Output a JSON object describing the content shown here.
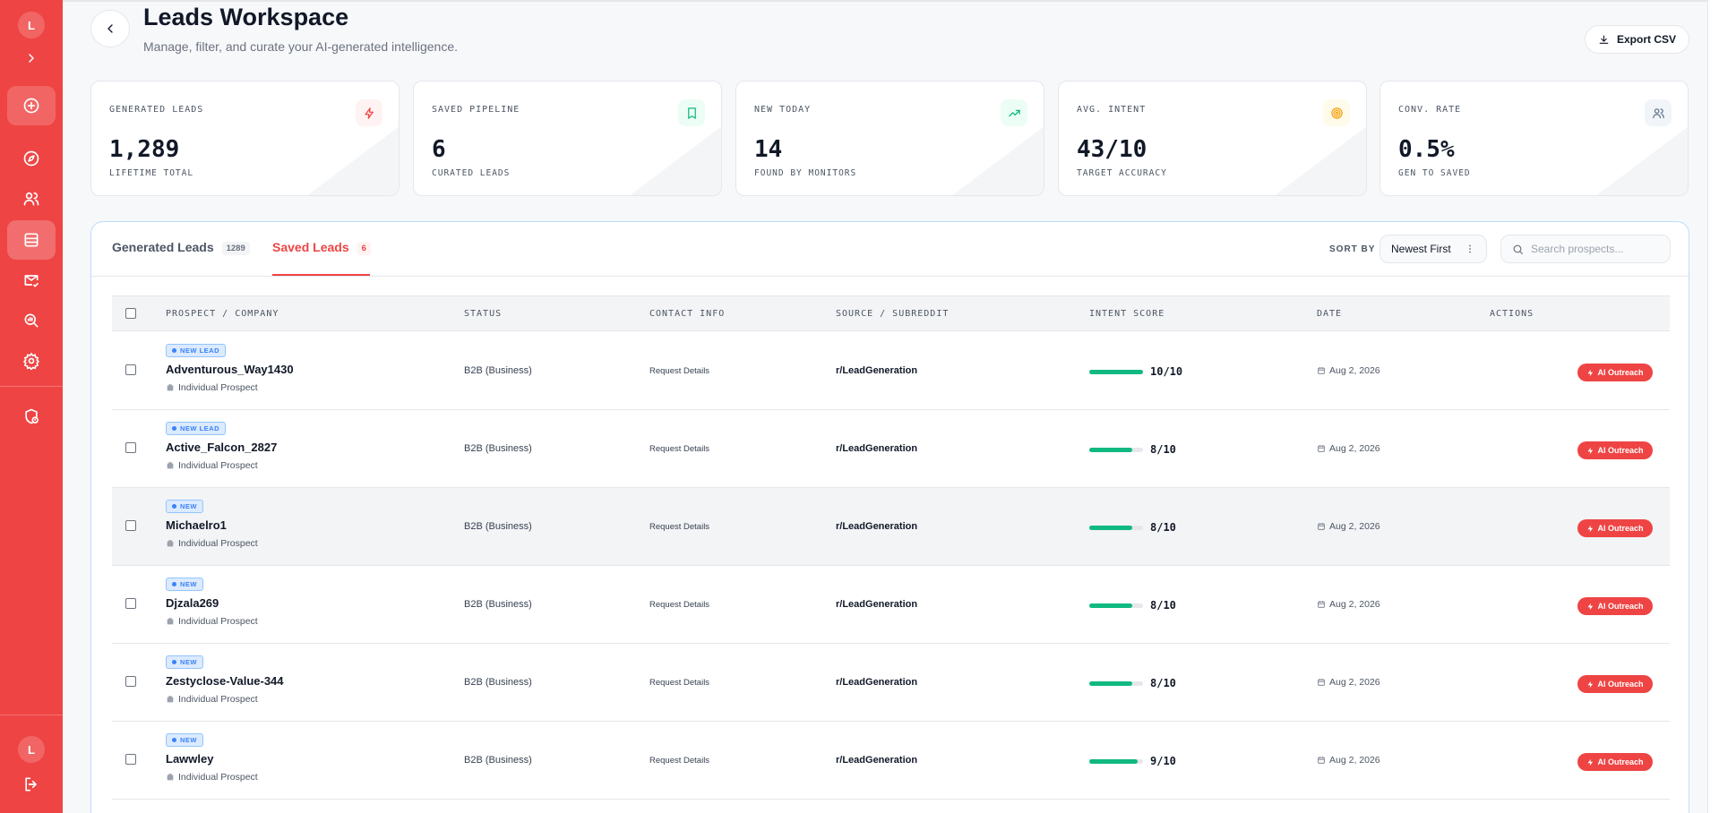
{
  "sidebar": {
    "avatar_top": "L",
    "avatar_bottom": "L",
    "items": [
      {
        "name": "add",
        "icon": "plus-circle-icon"
      },
      {
        "name": "discover",
        "icon": "compass-icon"
      },
      {
        "name": "users",
        "icon": "users-icon"
      },
      {
        "name": "leads",
        "icon": "table-icon",
        "active": true
      },
      {
        "name": "mail",
        "icon": "mail-check-icon"
      },
      {
        "name": "search",
        "icon": "search-analytics-icon"
      },
      {
        "name": "settings",
        "icon": "gear-icon"
      },
      {
        "name": "security",
        "icon": "shield-alert-icon"
      }
    ]
  },
  "header": {
    "title": "Leads Workspace",
    "subtitle": "Manage, filter, and curate your AI-generated intelligence.",
    "export_label": "Export CSV"
  },
  "stats": [
    {
      "label": "GENERATED LEADS",
      "value": "1,289",
      "caption": "LIFETIME TOTAL",
      "icon": "bolt-icon",
      "color": "#ef4444",
      "bg": "#fef2f2"
    },
    {
      "label": "SAVED PIPELINE",
      "value": "6",
      "caption": "CURATED LEADS",
      "icon": "bookmark-icon",
      "color": "#10b981",
      "bg": "#ecfdf5"
    },
    {
      "label": "NEW TODAY",
      "value": "14",
      "caption": "FOUND BY MONITORS",
      "icon": "trending-up-icon",
      "color": "#10b981",
      "bg": "#ecfdf5"
    },
    {
      "label": "AVG. INTENT",
      "value": "43/10",
      "caption": "TARGET ACCURACY",
      "icon": "target-icon",
      "color": "#f59e0b",
      "bg": "#fffbeb"
    },
    {
      "label": "CONV. RATE",
      "value": "0.5%",
      "caption": "GEN TO SAVED",
      "icon": "users-icon",
      "color": "#64748b",
      "bg": "#f1f5f9"
    }
  ],
  "tabs": {
    "generated_label": "Generated Leads",
    "generated_count": "1289",
    "saved_label": "Saved Leads",
    "saved_count": "6",
    "active": "saved"
  },
  "toolbar": {
    "sort_label": "SORT BY",
    "sort_value": "Newest First",
    "search_placeholder": "Search prospects..."
  },
  "table": {
    "columns": [
      "PROSPECT / COMPANY",
      "STATUS",
      "CONTACT INFO",
      "SOURCE / SUBREDDIT",
      "INTENT SCORE",
      "DATE",
      "ACTIONS"
    ],
    "rows": [
      {
        "badge": "NEW LEAD",
        "name": "Adventurous_Way1430",
        "type": "Individual Prospect",
        "status": "B2B (Business)",
        "contact": "Request Details",
        "source": "r/LeadGeneration",
        "score": "10/10",
        "score_value": 10,
        "date": "Aug 2, 2026",
        "action": "AI Outreach"
      },
      {
        "badge": "NEW LEAD",
        "name": "Active_Falcon_2827",
        "type": "Individual Prospect",
        "status": "B2B (Business)",
        "contact": "Request Details",
        "source": "r/LeadGeneration",
        "score": "8/10",
        "score_value": 8,
        "date": "Aug 2, 2026",
        "action": "AI Outreach"
      },
      {
        "badge": "NEW",
        "name": "Michaelro1",
        "type": "Individual Prospect",
        "status": "B2B (Business)",
        "contact": "Request Details",
        "source": "r/LeadGeneration",
        "score": "8/10",
        "score_value": 8,
        "date": "Aug 2, 2026",
        "action": "AI Outreach",
        "highlighted": true
      },
      {
        "badge": "NEW",
        "name": "Djzala269",
        "type": "Individual Prospect",
        "status": "B2B (Business)",
        "contact": "Request Details",
        "source": "r/LeadGeneration",
        "score": "8/10",
        "score_value": 8,
        "date": "Aug 2, 2026",
        "action": "AI Outreach"
      },
      {
        "badge": "NEW",
        "name": "Zestyclose-Value-344",
        "type": "Individual Prospect",
        "status": "B2B (Business)",
        "contact": "Request Details",
        "source": "r/LeadGeneration",
        "score": "8/10",
        "score_value": 8,
        "date": "Aug 2, 2026",
        "action": "AI Outreach"
      },
      {
        "badge": "NEW",
        "name": "Lawwley",
        "type": "Individual Prospect",
        "status": "B2B (Business)",
        "contact": "Request Details",
        "source": "r/LeadGeneration",
        "score": "9/10",
        "score_value": 9,
        "date": "Aug 2, 2026",
        "action": "AI Outreach"
      }
    ]
  },
  "colors": {
    "accent": "#ef4444",
    "success": "#10b981",
    "badge_blue": "#3b82f6"
  }
}
